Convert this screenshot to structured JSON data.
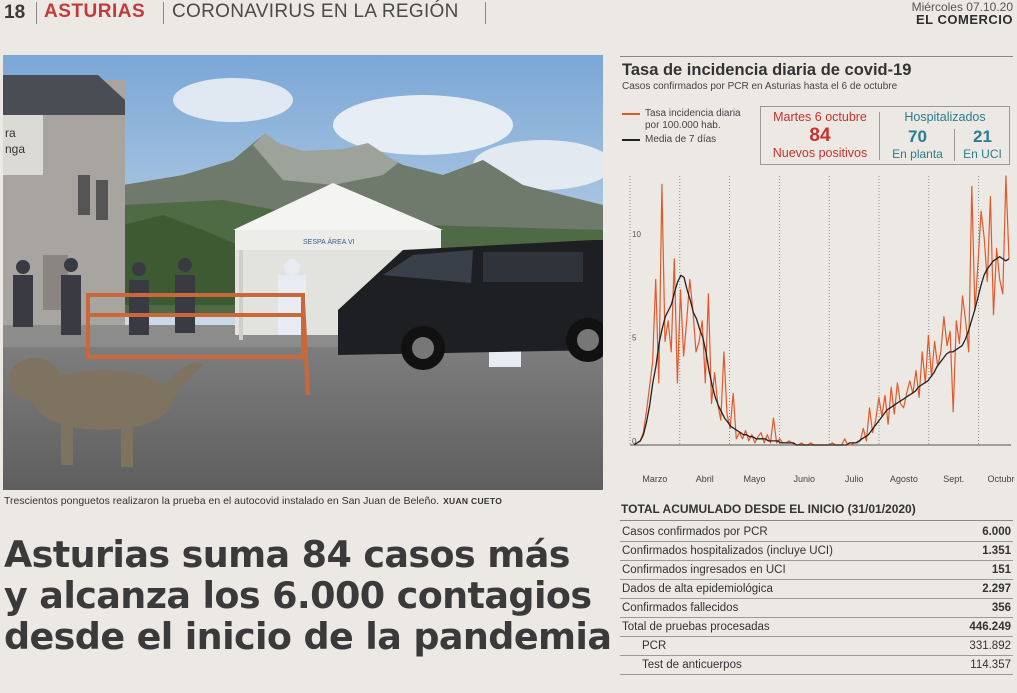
{
  "header": {
    "page_number": "18",
    "section": "ASTURIAS",
    "subsection": "CORONAVIRUS EN LA REGIÓN",
    "date": "Miércoles 07.10.20",
    "newspaper": "EL COMERCIO"
  },
  "photo": {
    "caption": "Trescientos ponguetos realizaron la prueba en el autocovid instalado en San Juan de Beleño.",
    "credit": "XUAN CUETO",
    "building_sign_line1": "ra",
    "building_sign_line2": "nga",
    "tent_label": "SESPA ÁREA VI"
  },
  "headline": {
    "line1": "Asturias suma 84 casos más",
    "line2": "y alcanza los 6.000 contagios",
    "line3": "desde el inicio de la pandemia"
  },
  "chart_panel": {
    "title": "Tasa de incidencia diaria de covid-19",
    "subtitle": "Casos confirmados por PCR en Asturias hasta el 6 de octubre",
    "legend_red": "Tasa incidencia diaria por 100.000 hab.",
    "legend_black": "Media de 7 días",
    "infobox": {
      "date": "Martes 6 octubre",
      "new_cases": "84",
      "new_cases_label": "Nuevos positivos",
      "hosp_title": "Hospitalizados",
      "ward": "70",
      "ward_label": "En planta",
      "icu": "21",
      "icu_label": "En UCI"
    },
    "colors": {
      "daily": "#e05a2b",
      "average": "#222222",
      "accent_red": "#c8322e",
      "accent_teal": "#2a7d8e"
    }
  },
  "chart_data": {
    "type": "line",
    "title": "Tasa de incidencia diaria de covid-19",
    "x_labels": [
      "Marzo",
      "Abril",
      "Mayo",
      "Junio",
      "Julio",
      "Agosto",
      "Sept.",
      "Octubre"
    ],
    "ylim": [
      0,
      13
    ],
    "yticks": [
      "0",
      "5",
      "10"
    ],
    "grid": "vertical dotted",
    "series": [
      {
        "name": "Tasa incidencia diaria por 100.000 hab.",
        "values": [
          0,
          0.1,
          0.2,
          0.6,
          1.6,
          2.8,
          4,
          8,
          3,
          12.6,
          5,
          6,
          4.5,
          9,
          3,
          7.5,
          4.3,
          6,
          8,
          6.5,
          4.5,
          5,
          6,
          3,
          7.3,
          2,
          3.5,
          2,
          1.2,
          4.5,
          1.5,
          0.8,
          2.5,
          0.3,
          0.6,
          0.3,
          0.7,
          0.2,
          0.5,
          0.1,
          0.4,
          0.6,
          0.1,
          0.5,
          0.1,
          1.3,
          0.1,
          0.3,
          0.1,
          0.1,
          0.2,
          0.1,
          0,
          0,
          0.1,
          0,
          0,
          0.1,
          0,
          0,
          0,
          0,
          0,
          0,
          0.1,
          0,
          0,
          0,
          0.3,
          0,
          0,
          0.1,
          0.1,
          0.2,
          0.8,
          0.2,
          1.8,
          0.6,
          1.2,
          2.3,
          1.4,
          2.4,
          1,
          2.8,
          1.5,
          3,
          2,
          1.8,
          2.5,
          3.1,
          2.5,
          3.6,
          2.3,
          4.5,
          3,
          5.3,
          3.3,
          5,
          3.8,
          4.5,
          6.2,
          4.8,
          5.5,
          1.6,
          6,
          4.9,
          7.2,
          6,
          4.5,
          12.5,
          6.5,
          8.8,
          11.3,
          10,
          7.9,
          12,
          6.3,
          9.5,
          8,
          7.3,
          13,
          9
        ]
      },
      {
        "name": "Media de 7 días",
        "values": [
          0,
          0.1,
          0.2,
          0.5,
          1.1,
          1.9,
          3,
          3.8,
          4.9,
          5.6,
          6.2,
          6.5,
          6.8,
          7.4,
          7.9,
          8.2,
          8.1,
          7.5,
          7,
          6.4,
          6.1,
          5.6,
          5.2,
          4.5,
          3.6,
          2.9,
          2.3,
          1.9,
          1.6,
          1.3,
          1.1,
          0.9,
          0.8,
          0.7,
          0.6,
          0.5,
          0.5,
          0.4,
          0.4,
          0.3,
          0.3,
          0.3,
          0.3,
          0.2,
          0.2,
          0.2,
          0.2,
          0.1,
          0.1,
          0.1,
          0.1,
          0.1,
          0,
          0,
          0,
          0,
          0,
          0,
          0,
          0,
          0,
          0,
          0,
          0,
          0,
          0,
          0,
          0,
          0,
          0.1,
          0.1,
          0.1,
          0.2,
          0.3,
          0.4,
          0.5,
          0.7,
          0.9,
          1.1,
          1.3,
          1.5,
          1.7,
          1.8,
          1.9,
          2,
          2.1,
          2.2,
          2.3,
          2.4,
          2.5,
          2.6,
          2.8,
          2.9,
          3,
          3.1,
          3.3,
          3.5,
          3.8,
          4,
          4.2,
          4.4,
          4.5,
          4.5,
          4.6,
          4.7,
          4.8,
          5.1,
          5.5,
          6,
          6.5,
          7.1,
          7.7,
          8.2,
          8.5,
          8.7,
          8.9,
          9,
          9.1,
          9,
          8.9,
          9
        ]
      }
    ]
  },
  "table": {
    "title": "TOTAL ACUMULADO DESDE EL INICIO (31/01/2020)",
    "rows": [
      {
        "label": "Casos confirmados por PCR",
        "value": "6.000"
      },
      {
        "label": "Confirmados hospitalizados (incluye UCI)",
        "value": "1.351"
      },
      {
        "label": "Confirmados ingresados en UCI",
        "value": "151"
      },
      {
        "label": "Dados de alta epidemiológica",
        "value": "2.297"
      },
      {
        "label": "Confirmados fallecidos",
        "value": "356"
      },
      {
        "label": "Total de pruebas procesadas",
        "value": "446.249"
      },
      {
        "label": "PCR",
        "value": "331.892"
      },
      {
        "label": "Test de anticuerpos",
        "value": "114.357"
      }
    ]
  }
}
